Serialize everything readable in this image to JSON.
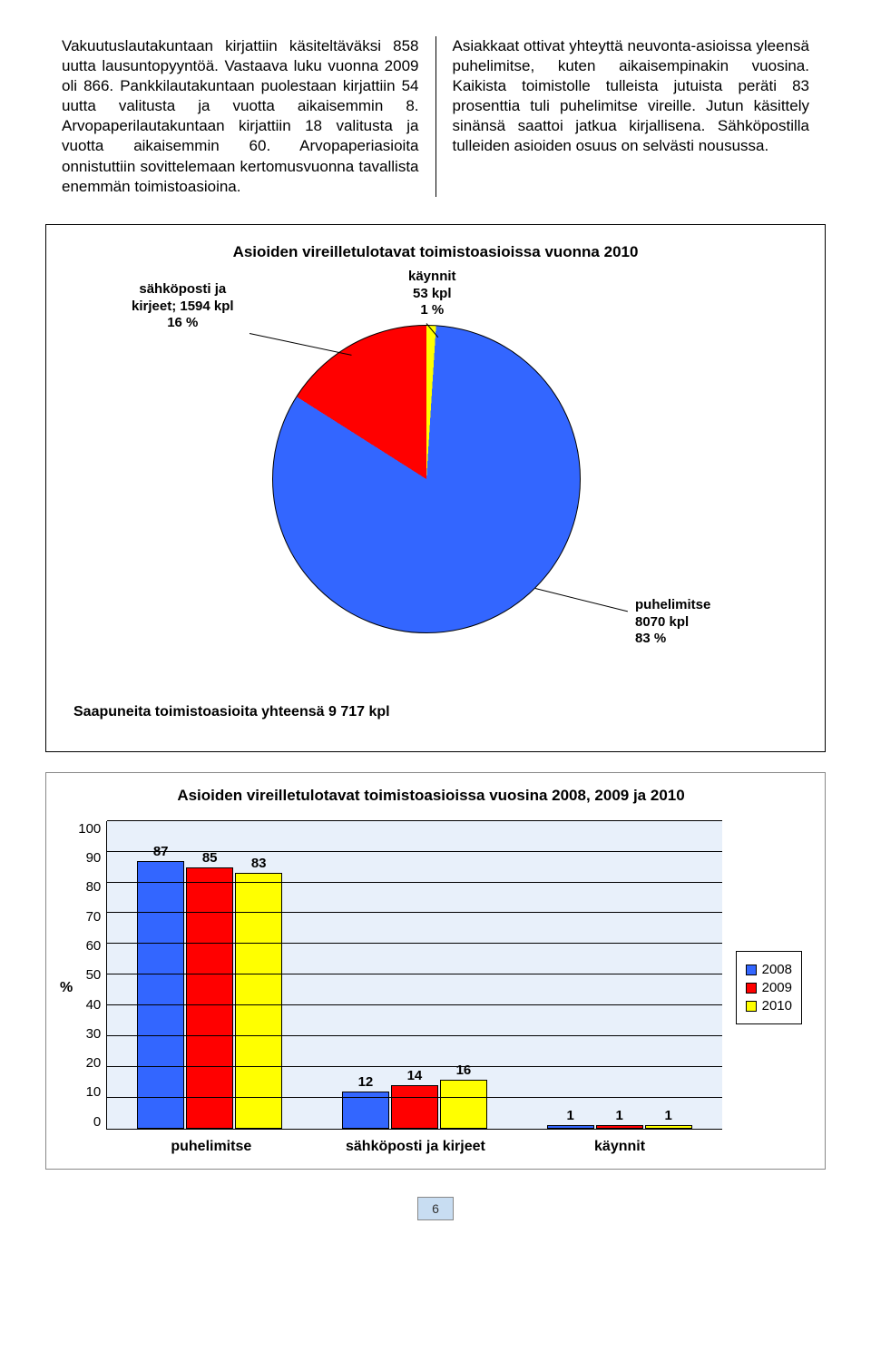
{
  "paragraphs": {
    "left": "Vakuutuslautakuntaan kirjattiin käsiteltäväksi 858 uutta lausuntopyyntöä. Vastaava luku vuonna 2009 oli 866. Pankkilautakuntaan puolestaan kirjattiin 54 uutta valitusta ja vuotta aikaisemmin 8. Arvopaperilautakuntaan kirjattiin 18 valitusta ja vuotta aikaisemmin 60. Arvopaperiasioita onnistuttiin sovittelemaan kertomusvuonna tavallista enemmän toimistoasioina.",
    "right": "Asiakkaat ottivat yhteyttä neuvonta-asioissa yleensä puhelimitse, kuten aikaisempinakin vuosina. Kaikista toimistolle tulleista jutuista peräti 83 prosenttia tuli puhelimitse vireille. Jutun käsittely sinänsä saattoi jatkua kirjallisena. Sähköpostilla tulleiden asioiden osuus on selvästi nousussa."
  },
  "pie_chart": {
    "title": "Asioiden vireilletulotavat toimistoasioissa vuonna 2010",
    "background_color": "#ffffff",
    "slices": [
      {
        "label": "sähköposti ja\nkirjeet; 1594 kpl\n16 %",
        "value": 16,
        "color": "#ff0000"
      },
      {
        "label": "käynnit\n53 kpl\n1 %",
        "value": 1,
        "color": "#ffff00"
      },
      {
        "label": "puhelimitse\n8070 kpl\n83 %",
        "value": 83,
        "color": "#3366ff"
      }
    ],
    "border_color": "#000000",
    "subtitle": "Saapuneita toimistoasioita yhteensä 9 717 kpl"
  },
  "bar_chart": {
    "title": "Asioiden vireilletulotavat toimistoasioissa vuosina 2008, 2009 ja 2010",
    "type": "bar",
    "y_label": "%",
    "ylim": [
      0,
      100
    ],
    "ytick_step": 10,
    "grid_color": "#000000",
    "plot_background": "#e8f0fa",
    "panel_background": "#ffffff",
    "categories": [
      "puhelimitse",
      "sähköposti ja kirjeet",
      "käynnit"
    ],
    "series": [
      {
        "name": "2008",
        "color": "#3366ff",
        "values": [
          87,
          12,
          1
        ]
      },
      {
        "name": "2009",
        "color": "#ff0000",
        "values": [
          85,
          14,
          1
        ]
      },
      {
        "name": "2010",
        "color": "#ffff00",
        "values": [
          83,
          16,
          1
        ]
      }
    ],
    "bar_border": "#000000",
    "label_fontsize": 15
  },
  "page_number": "6"
}
